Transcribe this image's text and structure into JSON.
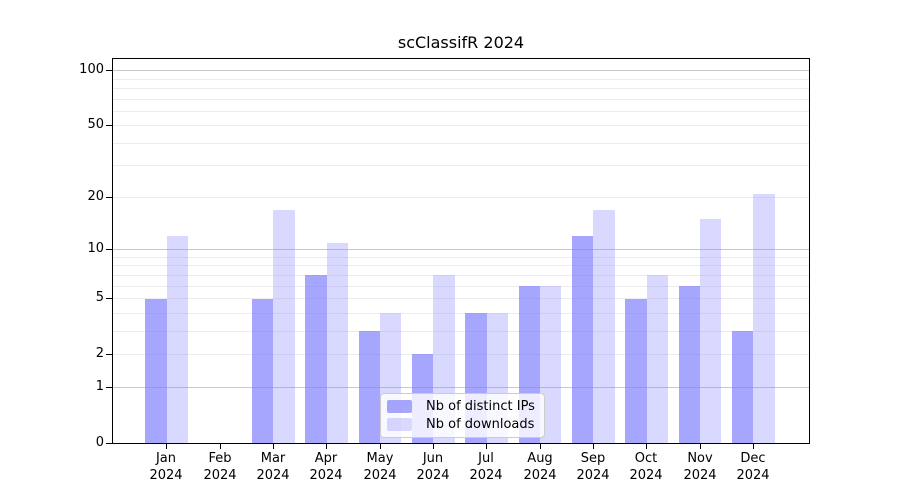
{
  "title": "scClassifR 2024",
  "colors": {
    "bar_base": "#8080ff",
    "series_ips": "rgba(128,128,255,0.7)",
    "series_downloads": "rgba(128,128,255,0.3)",
    "major_grid": "#c9c9c9",
    "minor_grid": "#ececec",
    "axis": "#000000",
    "background": "#ffffff"
  },
  "chart_data": {
    "type": "bar",
    "title": "scClassifR 2024",
    "year": "2024",
    "categories": [
      "Jan 2024",
      "Feb 2024",
      "Mar 2024",
      "Apr 2024",
      "May 2024",
      "Jun 2024",
      "Jul 2024",
      "Aug 2024",
      "Sep 2024",
      "Oct 2024",
      "Nov 2024",
      "Dec 2024"
    ],
    "month_labels": [
      "Jan",
      "Feb",
      "Mar",
      "Apr",
      "May",
      "Jun",
      "Jul",
      "Aug",
      "Sep",
      "Oct",
      "Nov",
      "Dec"
    ],
    "series": [
      {
        "name": "Nb of distinct IPs",
        "key": "distinct-ips",
        "color": "rgba(128,128,255,0.7)",
        "values": [
          5,
          0,
          5,
          7,
          3,
          2,
          4,
          6,
          12,
          5,
          6,
          3
        ]
      },
      {
        "name": "Nb of downloads",
        "key": "downloads",
        "color": "rgba(128,128,255,0.3)",
        "values": [
          12,
          0,
          17,
          11,
          4,
          7,
          4,
          6,
          17,
          7,
          15,
          21
        ]
      }
    ],
    "xlabel": "",
    "ylabel": "",
    "y_axis": {
      "scale": "log1p",
      "tick_values": [
        0,
        1,
        2,
        5,
        10,
        20,
        50,
        100
      ],
      "major_gridlines": [
        1,
        10,
        100
      ],
      "minor_gridlines": [
        2,
        3,
        4,
        5,
        6,
        7,
        8,
        9,
        20,
        30,
        40,
        50,
        60,
        70,
        80,
        90
      ],
      "ylim": [
        0,
        116
      ]
    },
    "grid": true,
    "legend_position": "lower center"
  }
}
